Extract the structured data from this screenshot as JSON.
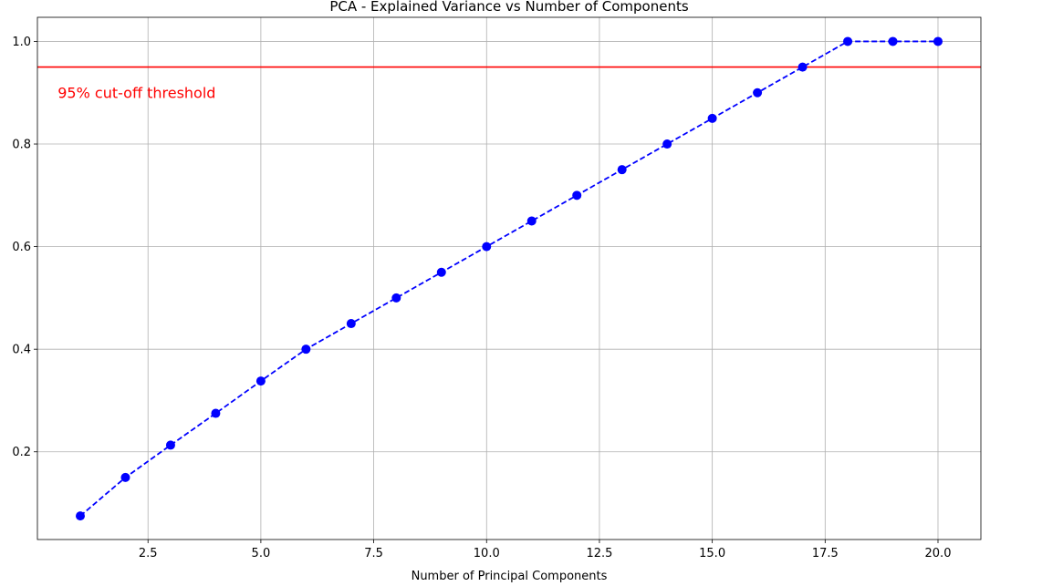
{
  "chart_data": {
    "type": "line",
    "title": "PCA - Explained Variance vs Number of Components",
    "xlabel": "Number of Principal Components",
    "ylabel": "",
    "xlim": [
      0.05,
      20.95
    ],
    "ylim": [
      0.029,
      1.047
    ],
    "x_ticks": [
      2.5,
      5.0,
      7.5,
      10.0,
      12.5,
      15.0,
      17.5,
      20.0
    ],
    "x_tick_labels": [
      "2.5",
      "5.0",
      "7.5",
      "10.0",
      "12.5",
      "15.0",
      "17.5",
      "20.0"
    ],
    "y_ticks": [
      0.2,
      0.4,
      0.6,
      0.8,
      1.0
    ],
    "y_tick_labels": [
      "0.2",
      "0.4",
      "0.6",
      "0.8",
      "1.0"
    ],
    "grid": true,
    "series": [
      {
        "x": [
          1,
          2,
          3,
          4,
          5,
          6,
          7,
          8,
          9,
          10,
          11,
          12,
          13,
          14,
          15,
          16,
          17,
          18,
          19,
          20
        ],
        "values": [
          0.075,
          0.15,
          0.213,
          0.275,
          0.338,
          0.4,
          0.45,
          0.5,
          0.55,
          0.6,
          0.65,
          0.7,
          0.75,
          0.8,
          0.85,
          0.9,
          0.95,
          1.0,
          1.0,
          1.0
        ],
        "color": "#0000ff",
        "linestyle": "dashed",
        "marker": "circle"
      }
    ],
    "hline": {
      "y": 0.95,
      "color": "#ff0000"
    },
    "annotation": {
      "text": "95% cut-off threshold",
      "x": 0.5,
      "y": 0.9,
      "color": "#ff0000"
    }
  }
}
